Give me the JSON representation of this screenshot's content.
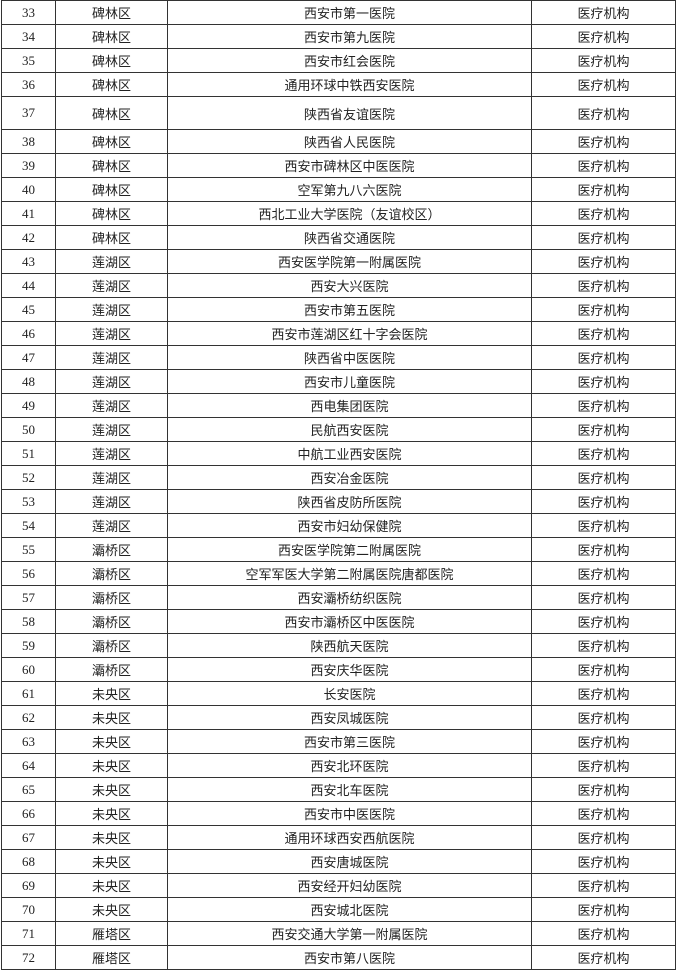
{
  "table": {
    "rows": [
      {
        "no": "33",
        "district": "碑林区",
        "name": "西安市第一医院",
        "type": "医疗机构"
      },
      {
        "no": "34",
        "district": "碑林区",
        "name": "西安市第九医院",
        "type": "医疗机构"
      },
      {
        "no": "35",
        "district": "碑林区",
        "name": "西安市红会医院",
        "type": "医疗机构"
      },
      {
        "no": "36",
        "district": "碑林区",
        "name": "通用环球中铁西安医院",
        "type": "医疗机构"
      },
      {
        "no": "37",
        "district": "碑林区",
        "name": "陕西省友谊医院",
        "type": "医疗机构"
      },
      {
        "no": "38",
        "district": "碑林区",
        "name": "陕西省人民医院",
        "type": "医疗机构"
      },
      {
        "no": "39",
        "district": "碑林区",
        "name": "西安市碑林区中医医院",
        "type": "医疗机构"
      },
      {
        "no": "40",
        "district": "碑林区",
        "name": "空军第九八六医院",
        "type": "医疗机构"
      },
      {
        "no": "41",
        "district": "碑林区",
        "name": "西北工业大学医院（友谊校区）",
        "type": "医疗机构"
      },
      {
        "no": "42",
        "district": "碑林区",
        "name": "陕西省交通医院",
        "type": "医疗机构"
      },
      {
        "no": "43",
        "district": "莲湖区",
        "name": "西安医学院第一附属医院",
        "type": "医疗机构"
      },
      {
        "no": "44",
        "district": "莲湖区",
        "name": "西安大兴医院",
        "type": "医疗机构"
      },
      {
        "no": "45",
        "district": "莲湖区",
        "name": "西安市第五医院",
        "type": "医疗机构"
      },
      {
        "no": "46",
        "district": "莲湖区",
        "name": "西安市莲湖区红十字会医院",
        "type": "医疗机构"
      },
      {
        "no": "47",
        "district": "莲湖区",
        "name": "陕西省中医医院",
        "type": "医疗机构"
      },
      {
        "no": "48",
        "district": "莲湖区",
        "name": "西安市儿童医院",
        "type": "医疗机构"
      },
      {
        "no": "49",
        "district": "莲湖区",
        "name": "西电集团医院",
        "type": "医疗机构"
      },
      {
        "no": "50",
        "district": "莲湖区",
        "name": "民航西安医院",
        "type": "医疗机构"
      },
      {
        "no": "51",
        "district": "莲湖区",
        "name": "中航工业西安医院",
        "type": "医疗机构"
      },
      {
        "no": "52",
        "district": "莲湖区",
        "name": "西安冶金医院",
        "type": "医疗机构"
      },
      {
        "no": "53",
        "district": "莲湖区",
        "name": "陕西省皮防所医院",
        "type": "医疗机构"
      },
      {
        "no": "54",
        "district": "莲湖区",
        "name": "西安市妇幼保健院",
        "type": "医疗机构"
      },
      {
        "no": "55",
        "district": "灞桥区",
        "name": "西安医学院第二附属医院",
        "type": "医疗机构"
      },
      {
        "no": "56",
        "district": "灞桥区",
        "name": "空军军医大学第二附属医院唐都医院",
        "type": "医疗机构"
      },
      {
        "no": "57",
        "district": "灞桥区",
        "name": "西安灞桥纺织医院",
        "type": "医疗机构"
      },
      {
        "no": "58",
        "district": "灞桥区",
        "name": "西安市灞桥区中医医院",
        "type": "医疗机构"
      },
      {
        "no": "59",
        "district": "灞桥区",
        "name": "陕西航天医院",
        "type": "医疗机构"
      },
      {
        "no": "60",
        "district": "灞桥区",
        "name": "西安庆华医院",
        "type": "医疗机构"
      },
      {
        "no": "61",
        "district": "未央区",
        "name": "长安医院",
        "type": "医疗机构"
      },
      {
        "no": "62",
        "district": "未央区",
        "name": "西安凤城医院",
        "type": "医疗机构"
      },
      {
        "no": "63",
        "district": "未央区",
        "name": "西安市第三医院",
        "type": "医疗机构"
      },
      {
        "no": "64",
        "district": "未央区",
        "name": "西安北环医院",
        "type": "医疗机构"
      },
      {
        "no": "65",
        "district": "未央区",
        "name": "西安北车医院",
        "type": "医疗机构"
      },
      {
        "no": "66",
        "district": "未央区",
        "name": "西安市中医医院",
        "type": "医疗机构"
      },
      {
        "no": "67",
        "district": "未央区",
        "name": "通用环球西安西航医院",
        "type": "医疗机构"
      },
      {
        "no": "68",
        "district": "未央区",
        "name": "西安唐城医院",
        "type": "医疗机构"
      },
      {
        "no": "69",
        "district": "未央区",
        "name": "西安经开妇幼医院",
        "type": "医疗机构"
      },
      {
        "no": "70",
        "district": "未央区",
        "name": "西安城北医院",
        "type": "医疗机构"
      },
      {
        "no": "71",
        "district": "雁塔区",
        "name": "西安交通大学第一附属医院",
        "type": "医疗机构"
      },
      {
        "no": "72",
        "district": "雁塔区",
        "name": "西安市第八医院",
        "type": "医疗机构"
      }
    ]
  }
}
